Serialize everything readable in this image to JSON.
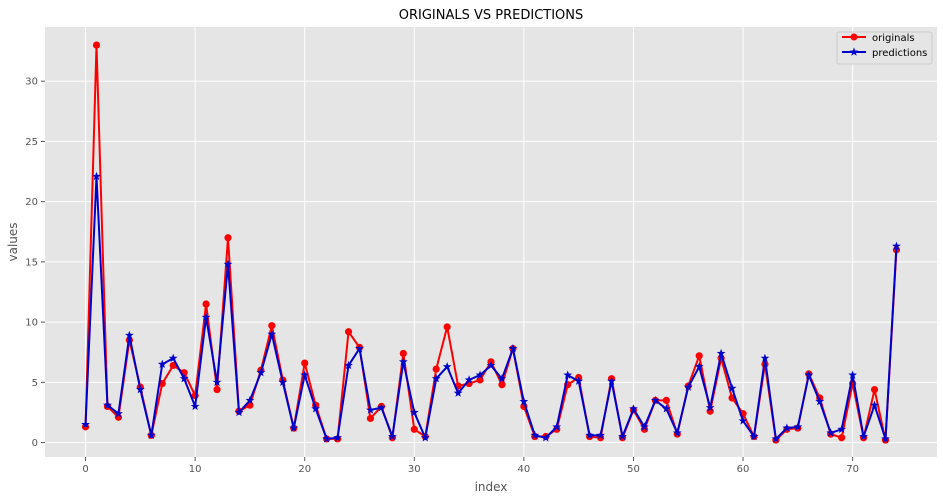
{
  "chart_data": {
    "type": "line",
    "title": "ORIGINALS VS PREDICTIONS",
    "xlabel": "index",
    "ylabel": "values",
    "xlim": [
      -3.7,
      77.7
    ],
    "ylim": [
      -1.2,
      34.5
    ],
    "x_ticks": [
      0,
      10,
      20,
      30,
      40,
      50,
      60,
      70
    ],
    "y_ticks": [
      0,
      5,
      10,
      15,
      20,
      25,
      30
    ],
    "grid": true,
    "legend_position": "top-right",
    "x": [
      0,
      1,
      2,
      3,
      4,
      5,
      6,
      7,
      8,
      9,
      10,
      11,
      12,
      13,
      14,
      15,
      16,
      17,
      18,
      19,
      20,
      21,
      22,
      23,
      24,
      25,
      26,
      27,
      28,
      29,
      30,
      31,
      32,
      33,
      34,
      35,
      36,
      37,
      38,
      39,
      40,
      41,
      42,
      43,
      44,
      45,
      46,
      47,
      48,
      49,
      50,
      51,
      52,
      53,
      54,
      55,
      56,
      57,
      58,
      59,
      60,
      61,
      62,
      63,
      64,
      65,
      66,
      67,
      68,
      69,
      70,
      71,
      72,
      73,
      74
    ],
    "series": [
      {
        "name": "originals",
        "color": "#ff0000",
        "marker": "circle",
        "values": [
          1.3,
          33.0,
          3.0,
          2.1,
          8.5,
          4.6,
          0.6,
          4.9,
          6.4,
          5.8,
          3.9,
          11.5,
          4.4,
          17.0,
          2.6,
          3.1,
          6.0,
          9.7,
          5.2,
          1.2,
          6.6,
          3.1,
          0.3,
          0.3,
          9.2,
          7.9,
          2.0,
          3.0,
          0.4,
          7.4,
          1.1,
          0.5,
          6.1,
          9.6,
          4.7,
          4.9,
          5.2,
          6.7,
          4.8,
          7.8,
          3.0,
          0.5,
          0.5,
          1.1,
          4.8,
          5.4,
          0.5,
          0.4,
          5.3,
          0.4,
          2.7,
          1.1,
          3.5,
          3.5,
          0.7,
          4.7,
          7.2,
          2.6,
          7.0,
          3.7,
          2.4,
          0.5,
          6.5,
          0.2,
          1.1,
          1.2,
          5.7,
          3.7,
          0.7,
          0.4,
          4.9,
          0.4,
          4.4,
          0.2,
          16.0
        ]
      },
      {
        "name": "predictions",
        "color": "#0000cc",
        "marker": "star",
        "values": [
          1.5,
          22.1,
          3.1,
          2.4,
          8.9,
          4.4,
          0.6,
          6.5,
          7.0,
          5.3,
          3.0,
          10.4,
          5.0,
          14.8,
          2.5,
          3.5,
          5.8,
          9.0,
          5.0,
          1.2,
          5.6,
          2.8,
          0.3,
          0.4,
          6.4,
          7.8,
          2.7,
          2.9,
          0.5,
          6.7,
          2.5,
          0.4,
          5.3,
          6.3,
          4.1,
          5.2,
          5.6,
          6.4,
          5.3,
          7.8,
          3.4,
          0.6,
          0.4,
          1.3,
          5.6,
          5.1,
          0.6,
          0.6,
          5.1,
          0.5,
          2.8,
          1.3,
          3.5,
          2.8,
          0.8,
          4.6,
          6.3,
          2.9,
          7.4,
          4.5,
          1.8,
          0.5,
          7.0,
          0.3,
          1.2,
          1.3,
          5.6,
          3.4,
          0.8,
          1.1,
          5.6,
          0.5,
          3.1,
          0.3,
          16.3
        ]
      }
    ]
  }
}
